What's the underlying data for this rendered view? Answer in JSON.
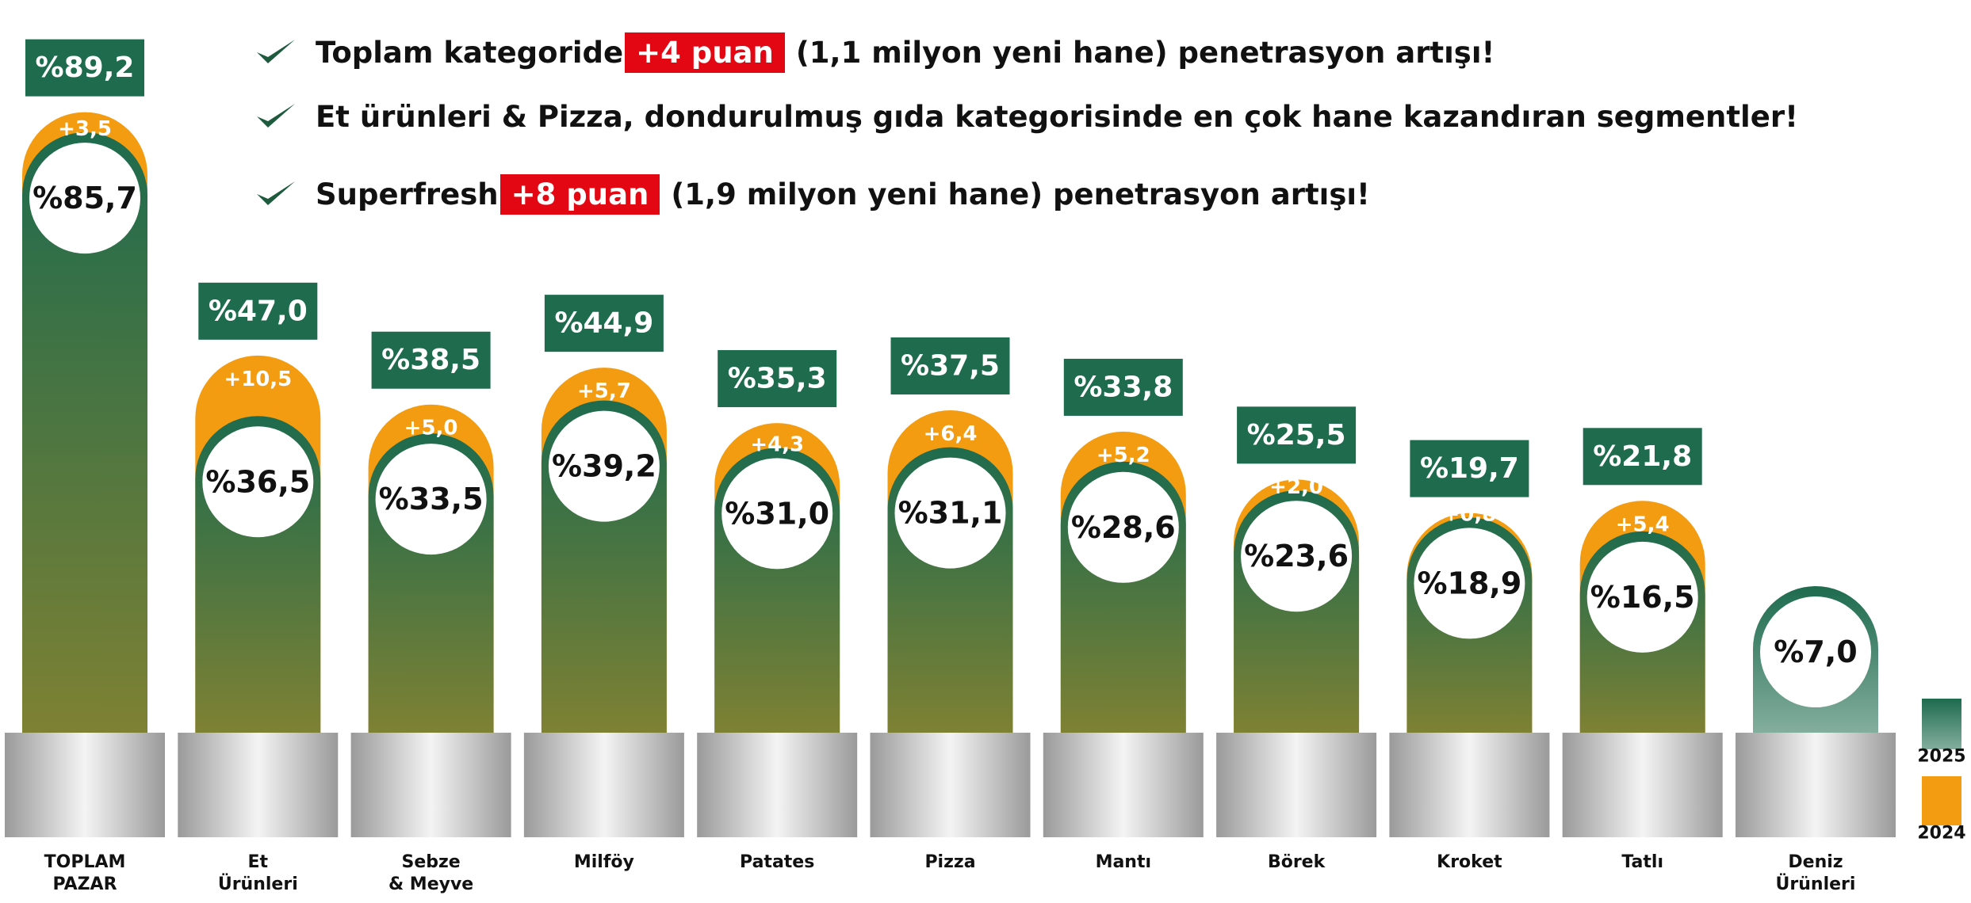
{
  "headlines": [
    {
      "before": "Toplam kategoride",
      "highlight": "+4 puan",
      "after": "(1,1 milyon yeni hane) penetrasyon artışı!"
    },
    {
      "before": "Et ürünleri & Pizza, dondurulmuş gıda kategorisinde en çok hane kazandıran segmentler!"
    },
    {
      "before": "Superfresh",
      "highlight": "+8 puan",
      "after": "(1,9 milyon yeni hane) penetrasyon artışı!"
    }
  ],
  "chart_data": {
    "type": "arch-bar",
    "categories": [
      "TOPLAM\nPAZAR",
      "Et\nÜrünleri",
      "Sebze\n& Meyve",
      "Milföy",
      "Patates",
      "Pizza",
      "Mantı",
      "Börek",
      "Kroket",
      "Tatlı",
      "Deniz\nÜrünleri"
    ],
    "series": [
      {
        "name": "2025",
        "color": "#1e6b4e",
        "values": [
          89.2,
          47.0,
          38.5,
          44.9,
          35.3,
          37.5,
          33.8,
          25.5,
          19.7,
          21.8,
          null
        ],
        "value_labels": [
          "%89,2",
          "%47,0",
          "%38,5",
          "%44,9",
          "%35,3",
          "%37,5",
          "%33,8",
          "%25,5",
          "%19,7",
          "%21,8",
          null
        ]
      },
      {
        "name": "2024",
        "color": "#f39c12",
        "values": [
          85.7,
          36.5,
          33.5,
          39.2,
          31.0,
          31.1,
          28.6,
          23.6,
          18.9,
          16.5,
          7.0
        ],
        "value_labels": [
          "%85,7",
          "%36,5",
          "%33,5",
          "%39,2",
          "%31,0",
          "%31,1",
          "%28,6",
          "%23,6",
          "%18,9",
          "%16,5",
          "%7,0"
        ]
      }
    ],
    "changes": {
      "values": [
        3.5,
        10.5,
        5.0,
        5.7,
        4.3,
        6.4,
        5.2,
        2.0,
        0.8,
        5.4,
        null
      ],
      "value_labels": [
        "+3,5",
        "+10,5",
        "+5,0",
        "+5,7",
        "+4,3",
        "+6,4",
        "+5,2",
        "+2,0",
        "+0,8",
        "+5,4",
        null
      ]
    }
  }
}
